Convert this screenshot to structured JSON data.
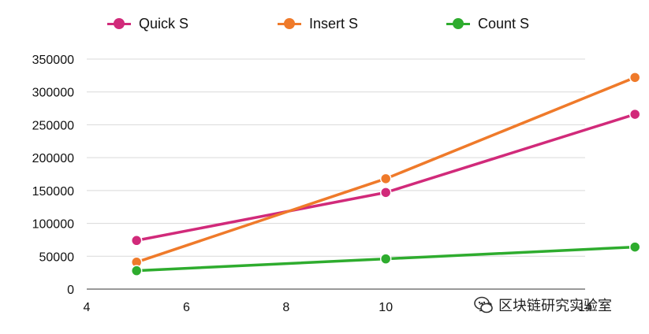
{
  "chart_data": {
    "type": "line",
    "title": "",
    "xlabel": "",
    "ylabel": "",
    "xlim": [
      4,
      14
    ],
    "ylim": [
      0,
      350000
    ],
    "xticks": [
      4,
      6,
      8,
      10,
      12,
      14
    ],
    "xtick_labels": [
      "4",
      "6",
      "8",
      "10",
      "12",
      "14"
    ],
    "yticks": [
      0,
      50000,
      100000,
      150000,
      200000,
      250000,
      300000,
      350000
    ],
    "ytick_labels": [
      "0",
      "50000",
      "100000",
      "150000",
      "200000",
      "250000",
      "300000",
      "350000"
    ],
    "grid": "horizontal",
    "legend_position": "top",
    "x": [
      5,
      10,
      15
    ],
    "series": [
      {
        "name": "Quick S",
        "color": "#d12a7a",
        "values": [
          74000,
          147000,
          266000
        ]
      },
      {
        "name": "Insert S",
        "color": "#ef7a2a",
        "values": [
          41000,
          168000,
          322000
        ]
      },
      {
        "name": "Count S",
        "color": "#2eac2e",
        "values": [
          28000,
          46000,
          64000
        ]
      }
    ]
  },
  "watermark": {
    "text": "区块链研究实验室",
    "icon": "wechat-icon"
  }
}
